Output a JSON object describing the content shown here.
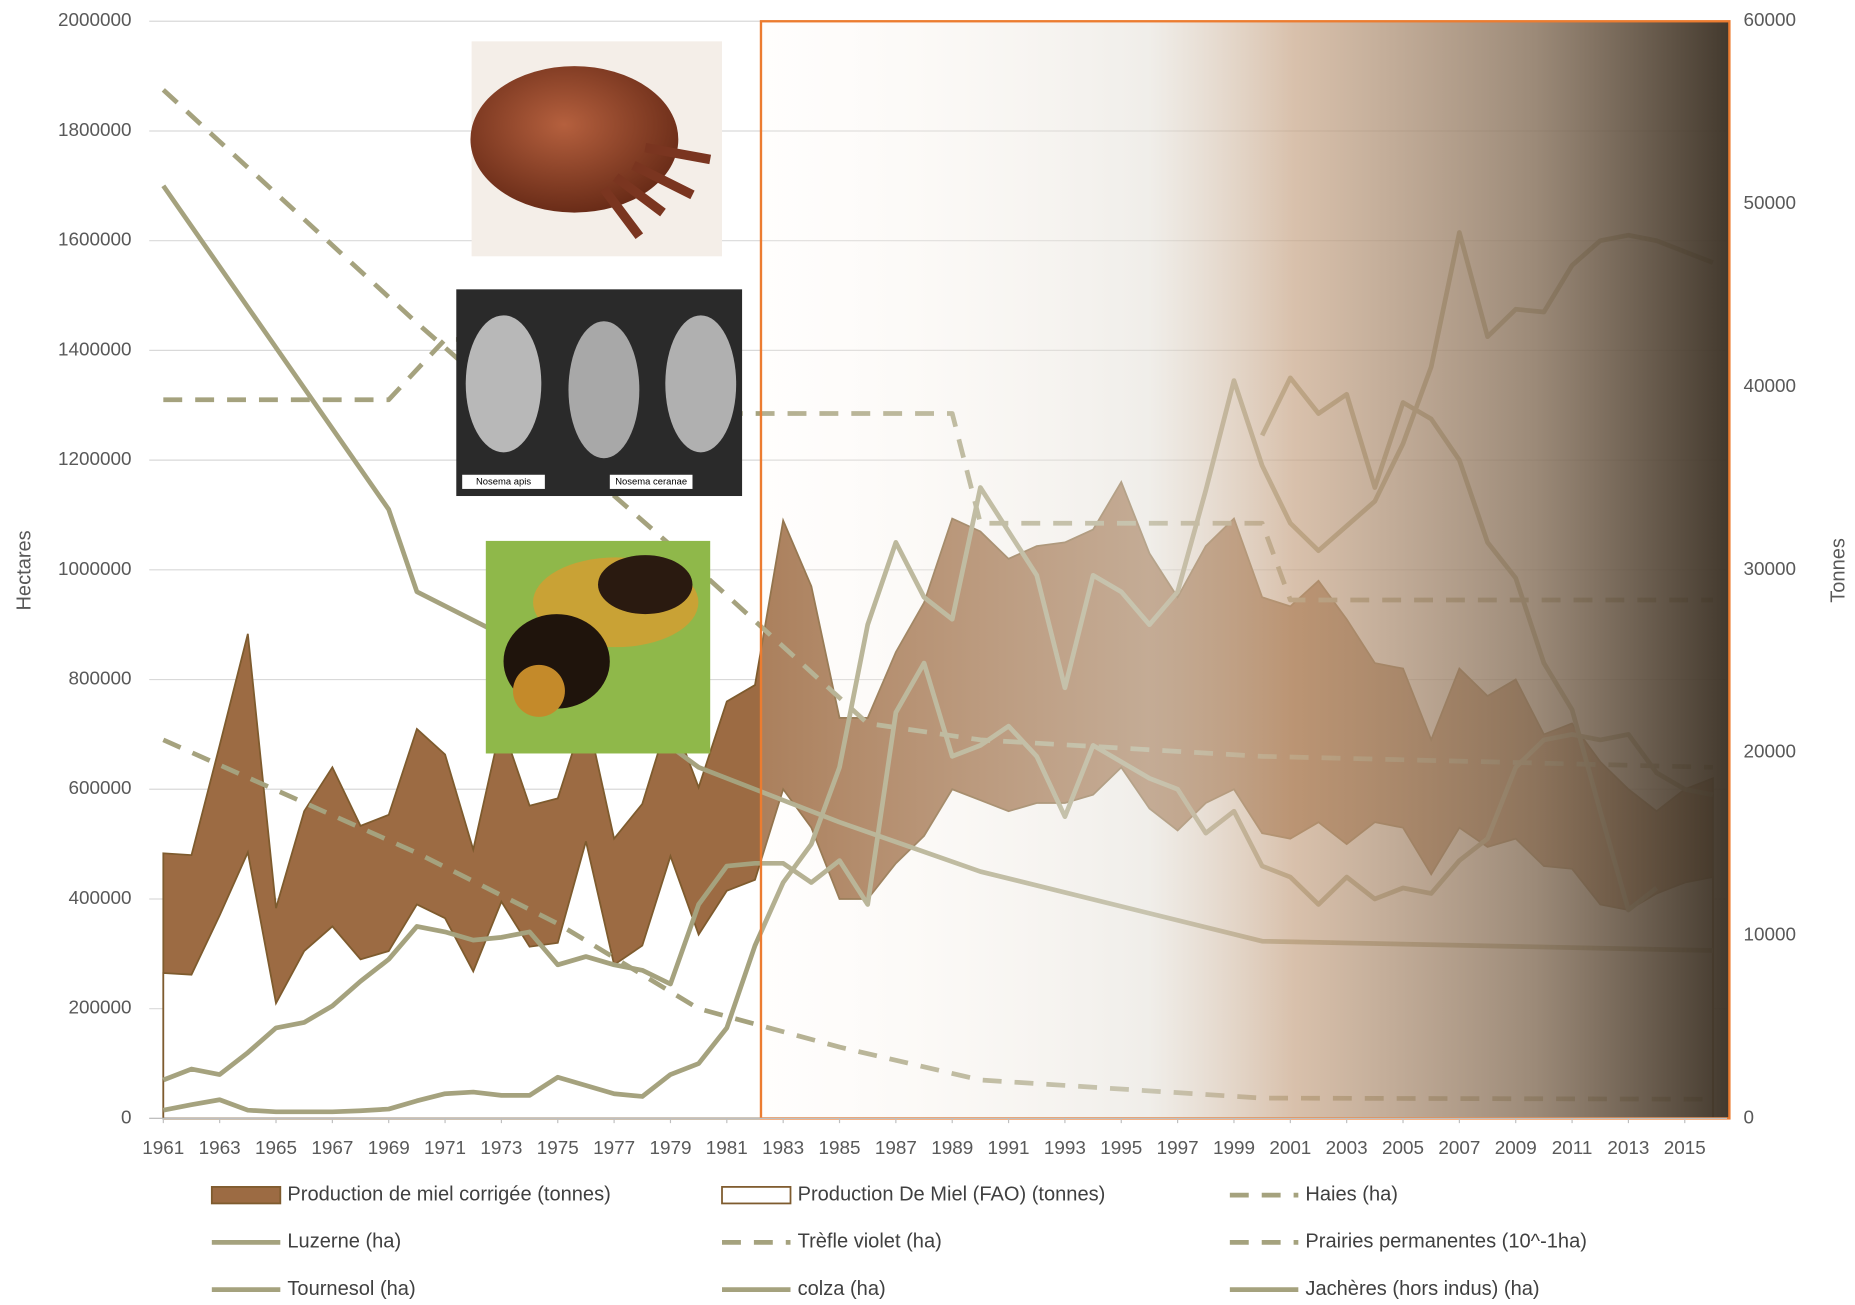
{
  "chart_data": {
    "type": "line",
    "y_label": "Hectares",
    "y2_label": "Tonnes",
    "annotations": [
      "Nosema apis",
      "Nosema ceranae"
    ],
    "xlim": [
      1960.5,
      2016.5
    ],
    "xticks": [
      1961,
      1963,
      1965,
      1967,
      1969,
      1971,
      1973,
      1975,
      1977,
      1979,
      1981,
      1983,
      1985,
      1987,
      1989,
      1991,
      1993,
      1995,
      1997,
      1999,
      2001,
      2003,
      2005,
      2007,
      2009,
      2011,
      2013,
      2015
    ],
    "ylim": [
      0,
      2000000
    ],
    "yticks": [
      0,
      200000,
      400000,
      600000,
      800000,
      1000000,
      1200000,
      1400000,
      1600000,
      1800000,
      2000000
    ],
    "y2lim": [
      0,
      60000
    ],
    "y2ticks": [
      0,
      10000,
      20000,
      30000,
      40000,
      50000,
      60000
    ],
    "grid": true,
    "x": [
      1961,
      1962,
      1963,
      1964,
      1965,
      1966,
      1967,
      1968,
      1969,
      1970,
      1971,
      1972,
      1973,
      1974,
      1975,
      1976,
      1977,
      1978,
      1979,
      1980,
      1981,
      1982,
      1983,
      1984,
      1985,
      1986,
      1987,
      1988,
      1989,
      1990,
      1991,
      1992,
      1993,
      1994,
      1995,
      1996,
      1997,
      1998,
      1999,
      2000,
      2001,
      2002,
      2003,
      2004,
      2005,
      2006,
      2007,
      2008,
      2009,
      2010,
      2011,
      2012,
      2013,
      2014,
      2015,
      2016
    ],
    "series": [
      {
        "name": "Production de miel corrigée (tonnes)",
        "color": "#9c6b43",
        "style": "area",
        "axis": "y2",
        "values": [
          14500,
          14400,
          20400,
          26500,
          11500,
          16800,
          19200,
          16000,
          16600,
          21300,
          19900,
          14700,
          21600,
          17100,
          17500,
          22300,
          15300,
          17200,
          22200,
          18100,
          22800,
          23700,
          32700,
          29100,
          21900,
          21900,
          25500,
          28200,
          32800,
          32100,
          30600,
          31300,
          31500,
          32200,
          34800,
          30900,
          28500,
          31300,
          32800,
          28500,
          28000,
          29400,
          27300,
          24900,
          24600,
          20700,
          24600,
          23100,
          24000,
          21000,
          21600,
          19500,
          18000,
          16800,
          18000,
          18600
        ]
      },
      {
        "name": "Production De Miel (FAO) (tonnes)",
        "color": "#ffffff",
        "style": "area",
        "axis": "y2",
        "values": [
          7950,
          7860,
          11100,
          14550,
          6300,
          9150,
          10500,
          8700,
          9150,
          11700,
          10950,
          8040,
          11850,
          9390,
          9600,
          15150,
          8400,
          9450,
          14340,
          10050,
          12450,
          13050,
          18000,
          15900,
          12000,
          12000,
          13950,
          15450,
          18000,
          17400,
          16800,
          17250,
          17250,
          17700,
          19200,
          16950,
          15750,
          17250,
          18000,
          15600,
          15300,
          16200,
          15000,
          16200,
          15900,
          13350,
          15900,
          14850,
          15300,
          13800,
          13650,
          11700,
          11400,
          12300,
          12900,
          13200
        ]
      },
      {
        "name": "Haies (ha)",
        "color": "#a5a27e",
        "style": "dashed",
        "x": [
          1961,
          1970,
          1980,
          1986,
          1990,
          2000,
          2016
        ],
        "values": [
          1875000,
          1450000,
          1000000,
          720000,
          690000,
          660000,
          640000
        ]
      },
      {
        "name": "Luzerne (ha)",
        "color": "#a5a27e",
        "style": "solid",
        "x": [
          1961,
          1969,
          1970,
          1975,
          1980,
          1985,
          1990,
          2000,
          2016
        ],
        "values": [
          1700000,
          1110000,
          960000,
          830000,
          640000,
          540000,
          450000,
          323000,
          306000
        ]
      },
      {
        "name": "Trèfle violet (ha)",
        "color": "#a5a27e",
        "style": "dashed",
        "x": [
          1961,
          1970,
          1975,
          1980,
          1985,
          1990,
          2000,
          2016
        ],
        "values": [
          690000,
          484000,
          355000,
          200000,
          130000,
          70000,
          37000,
          35000
        ]
      },
      {
        "name": "Prairies permanentes (10^-1ha)",
        "color": "#a5a27e",
        "style": "dashed",
        "x": [
          1961,
          1969,
          1971,
          1980,
          1981,
          1989,
          1990,
          2000,
          2001,
          2016
        ],
        "values": [
          1310000,
          1310000,
          1420000,
          1420000,
          1285000,
          1285000,
          1085000,
          1085000,
          945000,
          945000
        ]
      },
      {
        "name": "Tournesol (ha)",
        "color": "#a5a27e",
        "style": "solid",
        "values": [
          70000,
          90000,
          80000,
          120000,
          165000,
          175000,
          205000,
          250000,
          290000,
          350000,
          340000,
          325000,
          330000,
          340000,
          280000,
          295000,
          280000,
          270000,
          245000,
          390000,
          460000,
          465000,
          465000,
          430000,
          470000,
          390000,
          740000,
          830000,
          660000,
          680000,
          715000,
          660000,
          550000,
          680000,
          650000,
          620000,
          600000,
          520000,
          560000,
          460000,
          440000,
          390000,
          440000,
          400000,
          420000,
          410000,
          470000,
          510000,
          640000,
          690000,
          700000,
          690000,
          700000,
          630000,
          600000,
          590000
        ]
      },
      {
        "name": "colza (ha)",
        "color": "#a5a27e",
        "style": "solid",
        "values": [
          15000,
          25000,
          34000,
          15000,
          12000,
          12000,
          12000,
          14000,
          17000,
          32000,
          45000,
          48000,
          42000,
          42000,
          75000,
          60000,
          45000,
          40000,
          80000,
          100000,
          165000,
          315000,
          430000,
          500000,
          640000,
          900000,
          1050000,
          950000,
          910000,
          1150000,
          1070000,
          990000,
          785000,
          990000,
          960000,
          900000,
          960000,
          1145000,
          1345000,
          1190000,
          1085000,
          1035000,
          1080000,
          1125000,
          1230000,
          1370000,
          1615000,
          1425000,
          1475000,
          1470000,
          1555000,
          1600000,
          1610000,
          1600000,
          1580000,
          1560000
        ]
      },
      {
        "name": "Jachères (hors indus) (ha)",
        "color": "#a5a27e",
        "style": "solid",
        "x": [
          2000,
          2001,
          2002,
          2003,
          2004,
          2005,
          2006,
          2007,
          2008,
          2009,
          2010,
          2011,
          2012,
          2013,
          2014
        ],
        "values": [
          1245000,
          1350000,
          1285000,
          1320000,
          1150000,
          1305000,
          1275000,
          1200000,
          1050000,
          985000,
          830000,
          745000,
          560000,
          380000,
          420000
        ]
      }
    ]
  }
}
